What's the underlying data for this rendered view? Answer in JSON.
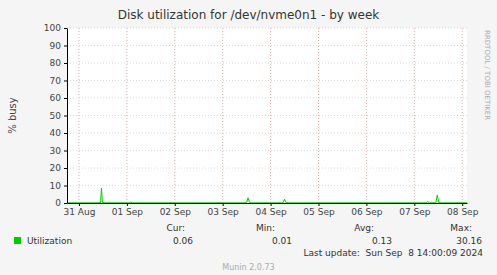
{
  "chart_data": {
    "type": "line",
    "title": "Disk utilization for /dev/nvme0n1 - by week",
    "y_label": "% busy",
    "x": [
      -0.25,
      0.4,
      0.45,
      0.47,
      0.49,
      0.55,
      1.05,
      1.08,
      1.11,
      1.5,
      2.5,
      3.45,
      3.5,
      3.53,
      3.56,
      3.6,
      4.2,
      4.26,
      4.29,
      4.32,
      4.4,
      5.5,
      6.5,
      7.2,
      7.25,
      7.28,
      7.31,
      7.4,
      7.45,
      7.48,
      7.51,
      7.55,
      8.1
    ],
    "series": [
      {
        "name": "Utilization",
        "color": "#00cc00",
        "values": [
          0.1,
          0.1,
          0.2,
          8.5,
          0.3,
          0.1,
          0.1,
          0.6,
          0.1,
          0.1,
          0.1,
          0.1,
          0.3,
          3,
          0.4,
          0.1,
          0.1,
          0.2,
          2.2,
          0.2,
          0.1,
          0.1,
          0.1,
          0.1,
          0.2,
          0.8,
          0.1,
          0.1,
          0.2,
          4.6,
          0.3,
          0.1,
          0.1
        ],
        "stats": [
          {
            "label": "Cur:",
            "value": 0.06
          },
          {
            "label": "Min:",
            "value": 0.01
          },
          {
            "label": "Avg:",
            "value": 0.13
          },
          {
            "label": "Max:",
            "value": 30.16
          }
        ]
      }
    ],
    "xlim": [
      -0.25,
      8.1
    ],
    "xticks": [
      {
        "value": 0,
        "label": "31 Aug"
      },
      {
        "value": 1,
        "label": "01 Sep"
      },
      {
        "value": 2,
        "label": "02 Sep"
      },
      {
        "value": 3,
        "label": "03 Sep"
      },
      {
        "value": 4,
        "label": "04 Sep"
      },
      {
        "value": 5,
        "label": "05 Sep"
      },
      {
        "value": 6,
        "label": "06 Sep"
      },
      {
        "value": 7,
        "label": "07 Sep"
      },
      {
        "value": 8,
        "label": "08 Sep"
      }
    ],
    "ylim": [
      0,
      100
    ],
    "yticks": [
      0,
      10,
      20,
      30,
      40,
      50,
      60,
      70,
      80,
      90,
      100
    ],
    "grid": true,
    "last_update": "Last update:  Sun Sep  8 14:00:09 2024",
    "footer": "Munin 2.0.73",
    "watermark": "RRDTOOL / TOBI OETIKER"
  }
}
